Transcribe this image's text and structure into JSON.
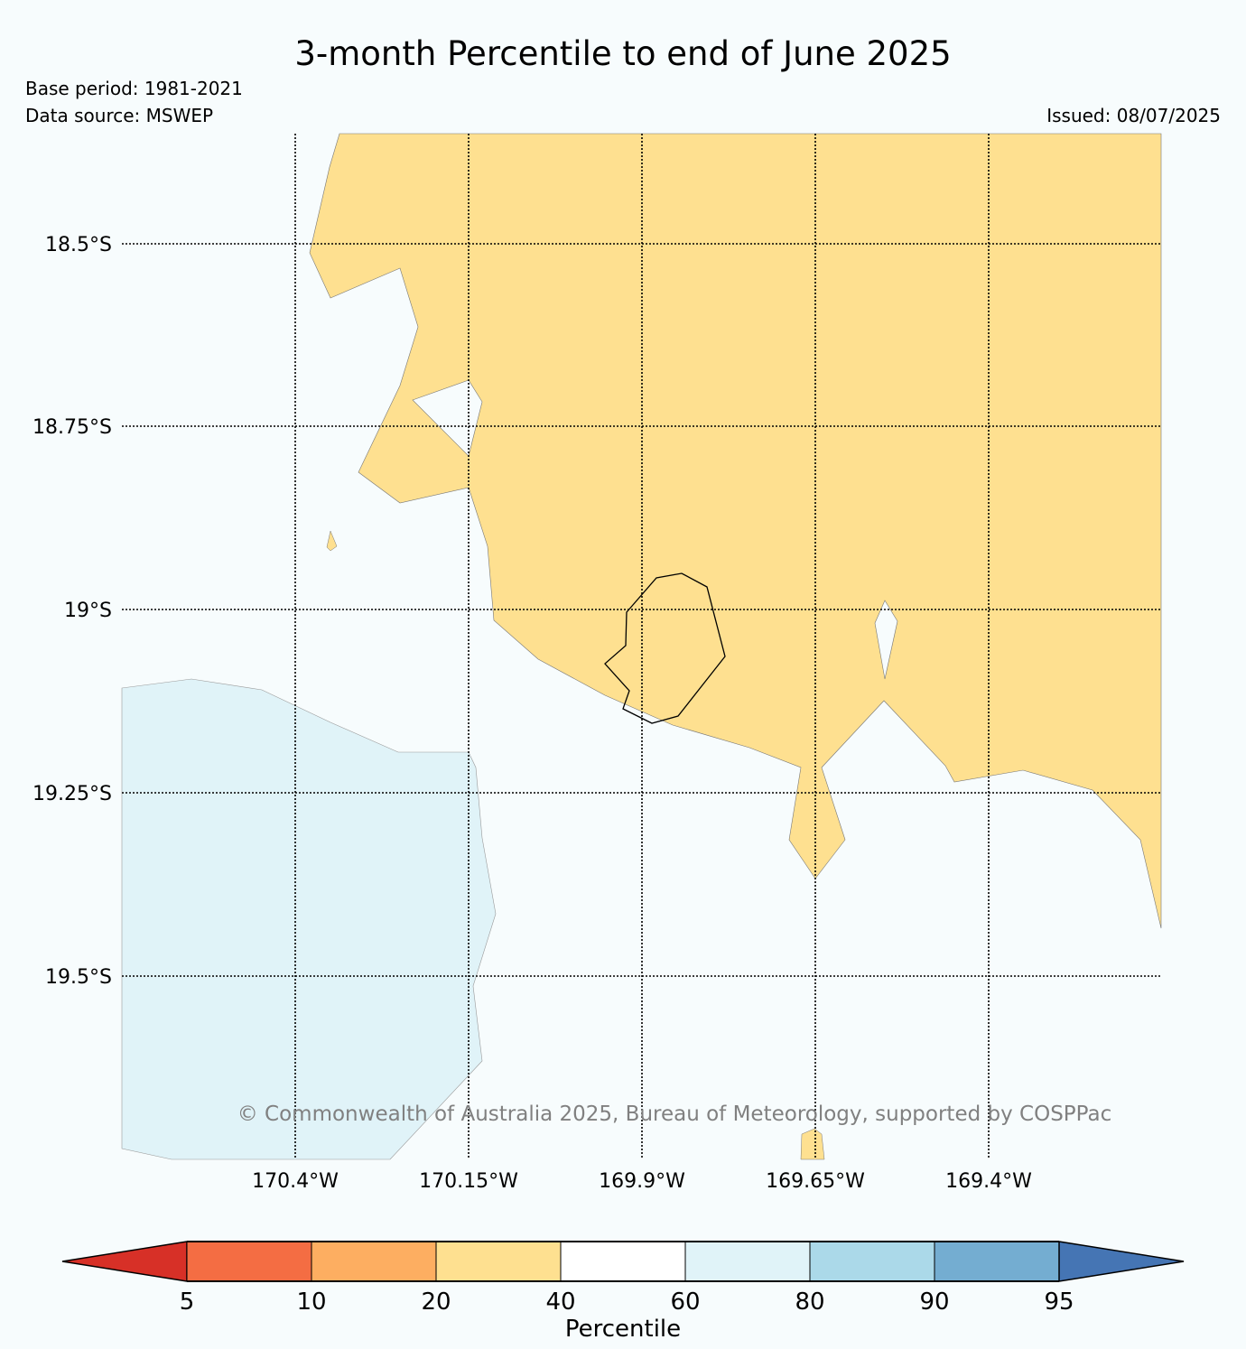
{
  "title": "3-month Percentile to end of June 2025",
  "base_period": "Base period: 1981-2021",
  "data_source": "Data source: MSWEP",
  "issued": "Issued: 08/07/2025",
  "copyright": "© Commonwealth of Australia 2025, Bureau of Meteorology, supported by COSPPac",
  "map": {
    "lat_labels": [
      "18.5°S",
      "18.75°S",
      "19°S",
      "19.25°S",
      "19.5°S"
    ],
    "lon_labels": [
      "170.4°W",
      "170.15°W",
      "169.9°W",
      "169.65°W",
      "169.4°W"
    ],
    "legend_categories": [
      "20-40 percentile",
      "40-60 percentile",
      "60-80 percentile"
    ]
  },
  "colorbar": {
    "label": "Percentile",
    "ticks": [
      "5",
      "10",
      "20",
      "40",
      "60",
      "80",
      "90",
      "95"
    ],
    "colors": [
      "#d73027",
      "#f46d43",
      "#fdae61",
      "#fee090",
      "#ffffff",
      "#e0f3f8",
      "#abd9e9",
      "#74add1",
      "#4575b4"
    ]
  }
}
